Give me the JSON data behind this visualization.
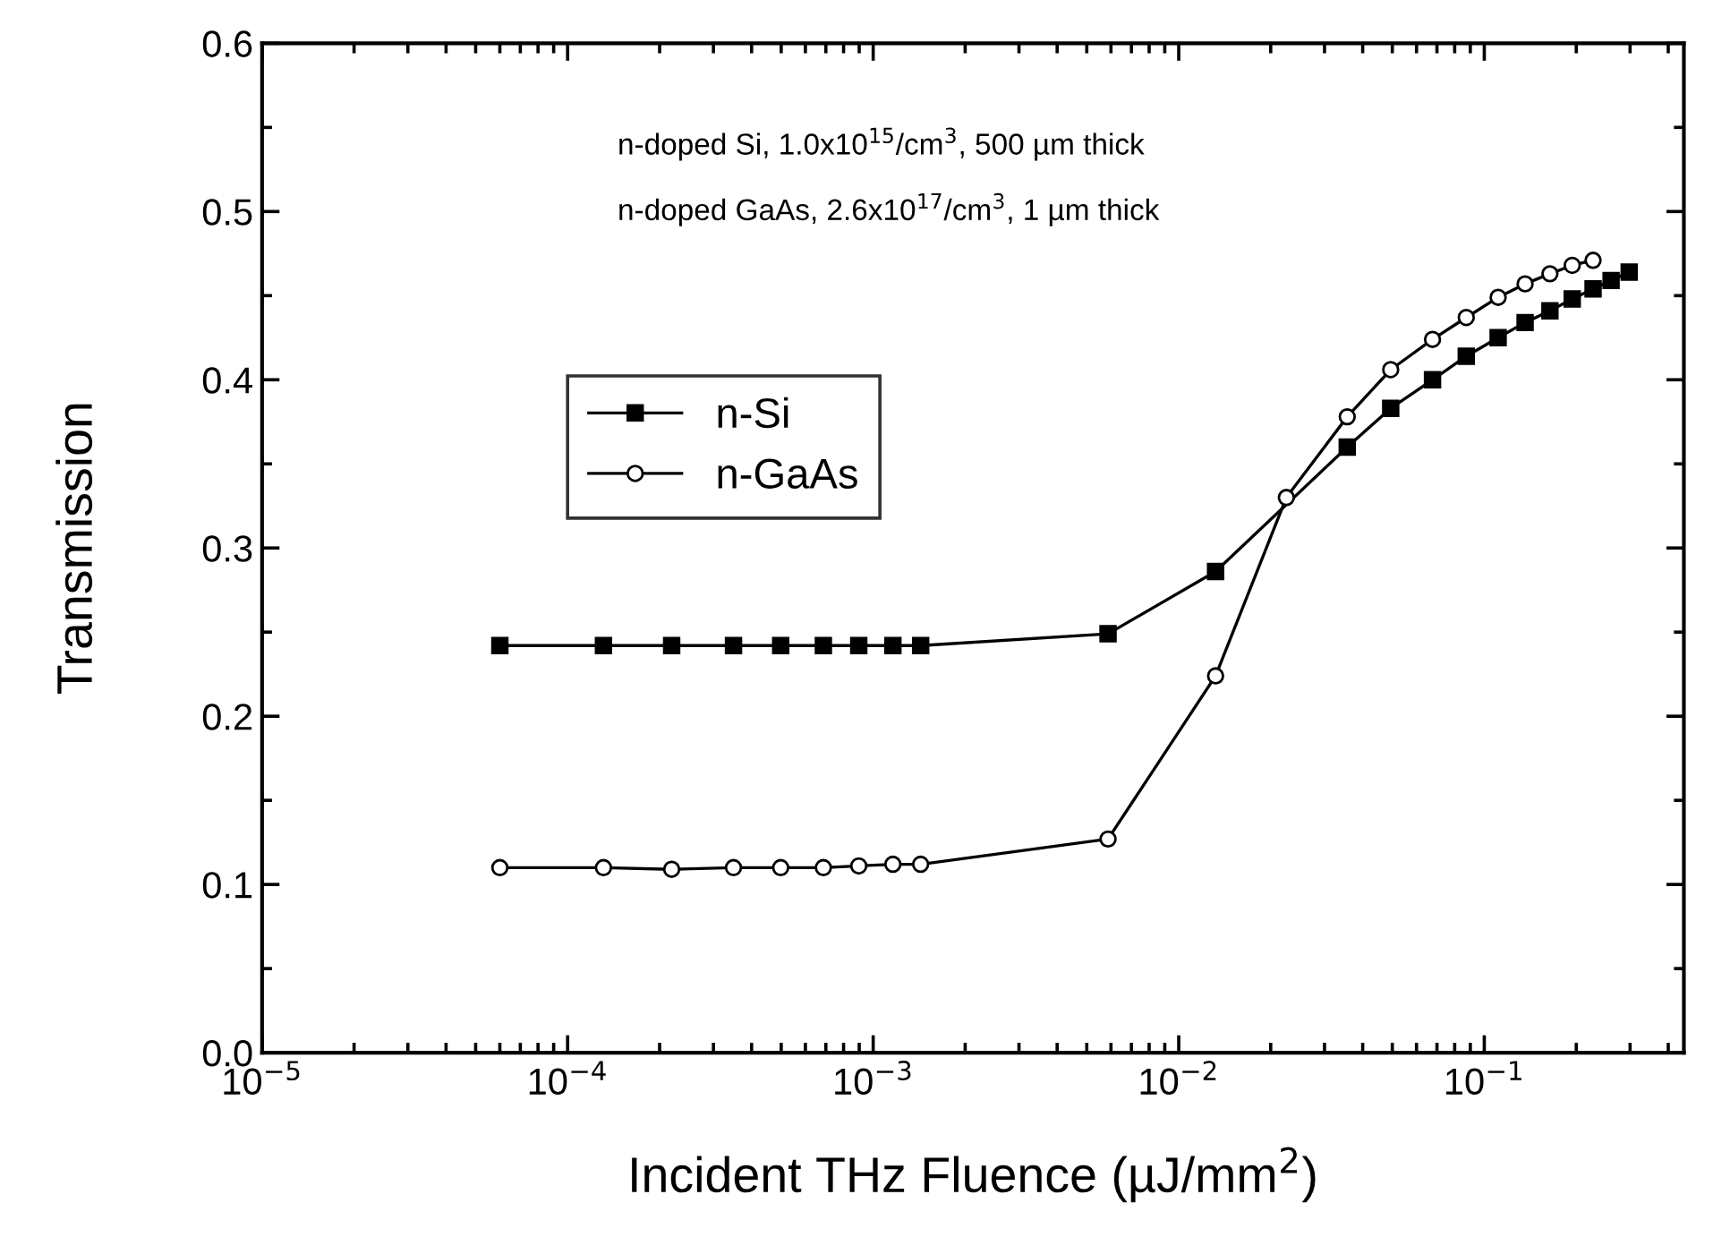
{
  "chart_data": {
    "type": "line",
    "xlabel": "Incident THz Fluence (µJ/mm$^{2}$)",
    "ylabel": "Transmission",
    "annotations": [
      "n-doped Si, 1.0x10$^{15}$/cm$^{3}$, 500 µm thick",
      "n-doped GaAs, 2.6x10$^{17}$/cm$^{3}$, 1 µm thick"
    ],
    "log": "x",
    "xlim": [
      1e-05,
      0.45
    ],
    "xticks": [
      {
        "value": 1e-05,
        "label": "10$^{−5}$"
      },
      {
        "value": 0.0001,
        "label": "10$^{−4}$"
      },
      {
        "value": 0.001,
        "label": "10$^{−3}$"
      },
      {
        "value": 0.01,
        "label": "10$^{−2}$"
      },
      {
        "value": 0.1,
        "label": "10$^{−1}$"
      }
    ],
    "ylim": [
      0.0,
      0.6
    ],
    "yticks": [
      {
        "value": 0.0,
        "label": "0.0"
      },
      0.1,
      0.2,
      0.3,
      0.4,
      0.5,
      0.6
    ],
    "grid": false,
    "legend": "center left",
    "line_style": "solid",
    "series": [
      {
        "name": "n-Si",
        "color": "#000000",
        "marker": "square",
        "x": [
          6e-05,
          0.000131,
          0.000219,
          0.000349,
          0.000498,
          0.000687,
          0.000897,
          0.00116,
          0.00143,
          0.00587,
          0.0132,
          0.0356,
          0.0494,
          0.0677,
          0.0873,
          0.111,
          0.136,
          0.164,
          0.194,
          0.227,
          0.26,
          0.298
        ],
        "values": [
          0.242,
          0.242,
          0.242,
          0.242,
          0.242,
          0.242,
          0.242,
          0.242,
          0.242,
          0.249,
          0.286,
          0.36,
          0.383,
          0.4,
          0.414,
          0.425,
          0.434,
          0.441,
          0.448,
          0.454,
          0.459,
          0.464
        ]
      },
      {
        "name": "n-GaAs",
        "color": "#000000",
        "marker": "circle",
        "x": [
          6e-05,
          0.000131,
          0.000219,
          0.000349,
          0.000498,
          0.000687,
          0.000897,
          0.00116,
          0.00143,
          0.00587,
          0.0132,
          0.0225,
          0.0356,
          0.0494,
          0.0677,
          0.0873,
          0.111,
          0.136,
          0.164,
          0.194,
          0.227
        ],
        "values": [
          0.11,
          0.11,
          0.109,
          0.11,
          0.11,
          0.11,
          0.111,
          0.112,
          0.112,
          0.127,
          0.224,
          0.33,
          0.378,
          0.406,
          0.424,
          0.437,
          0.449,
          0.457,
          0.463,
          0.468,
          0.471
        ]
      }
    ]
  }
}
